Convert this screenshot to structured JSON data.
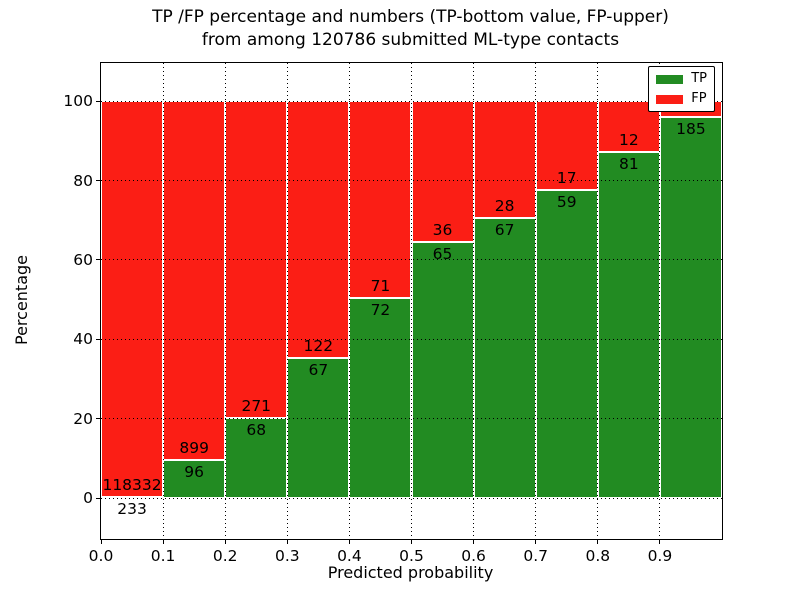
{
  "chart_data": {
    "type": "bar",
    "subtype": "stacked-percentage",
    "title_line1": "TP /FP percentage and numbers (TP-bottom value, FP-upper)",
    "title_line2": "from among 120786 submitted ML-type contacts",
    "xlabel": "Predicted probability",
    "ylabel": "Percentage",
    "x_tick_labels": [
      "0.0",
      "0.1",
      "0.2",
      "0.3",
      "0.4",
      "0.5",
      "0.6",
      "0.7",
      "0.8",
      "0.9"
    ],
    "y_tick_values": [
      0,
      20,
      40,
      60,
      80,
      100
    ],
    "xlim": [
      0.0,
      1.0
    ],
    "ylim": [
      -10.3,
      109.6
    ],
    "grid": true,
    "legend_position": "upper right",
    "legend": [
      {
        "label": "TP",
        "color": "#228b22"
      },
      {
        "label": "FP",
        "color": "#fb1e15"
      }
    ],
    "colors": {
      "tp": "#228b22",
      "fp": "#fb1e15",
      "bar_edge": "#ffffff"
    },
    "bars": [
      {
        "x_start": 0.0,
        "x_end": 0.1,
        "tp_count": "233",
        "fp_count": "118332",
        "tp_pct": 0.2
      },
      {
        "x_start": 0.1,
        "x_end": 0.2,
        "tp_count": "96",
        "fp_count": "899",
        "tp_pct": 9.6
      },
      {
        "x_start": 0.2,
        "x_end": 0.3,
        "tp_count": "68",
        "fp_count": "271",
        "tp_pct": 20.1
      },
      {
        "x_start": 0.3,
        "x_end": 0.4,
        "tp_count": "67",
        "fp_count": "122",
        "tp_pct": 35.4
      },
      {
        "x_start": 0.4,
        "x_end": 0.5,
        "tp_count": "72",
        "fp_count": "71",
        "tp_pct": 50.3
      },
      {
        "x_start": 0.5,
        "x_end": 0.6,
        "tp_count": "65",
        "fp_count": "36",
        "tp_pct": 64.4
      },
      {
        "x_start": 0.6,
        "x_end": 0.7,
        "tp_count": "67",
        "fp_count": "28",
        "tp_pct": 70.5
      },
      {
        "x_start": 0.7,
        "x_end": 0.8,
        "tp_count": "59",
        "fp_count": "17",
        "tp_pct": 77.6
      },
      {
        "x_start": 0.8,
        "x_end": 0.9,
        "tp_count": "81",
        "fp_count": "12",
        "tp_pct": 87.1
      },
      {
        "x_start": 0.9,
        "x_end": 1.0,
        "tp_count": "185",
        "fp_count": "",
        "tp_pct": 95.9
      }
    ]
  }
}
